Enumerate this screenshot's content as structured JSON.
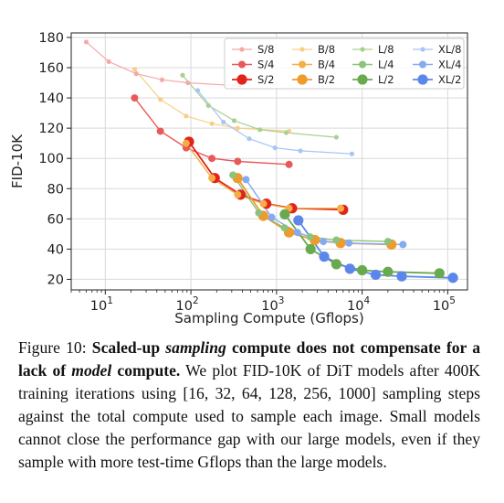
{
  "chart_data": {
    "type": "scatter",
    "xlabel": "Sampling Compute (Gflops)",
    "ylabel": "FID-10K",
    "xscale": "log",
    "xlim": [
      4,
      170000
    ],
    "ylim": [
      13,
      183
    ],
    "yticks": [
      20,
      40,
      60,
      80,
      100,
      120,
      140,
      160,
      180
    ],
    "xticks": [
      {
        "value": 10,
        "base": "10",
        "exp": "1"
      },
      {
        "value": 100,
        "base": "10",
        "exp": "2"
      },
      {
        "value": 1000,
        "base": "10",
        "exp": "3"
      },
      {
        "value": 10000,
        "base": "10",
        "exp": "4"
      },
      {
        "value": 100000,
        "base": "10",
        "exp": "5"
      }
    ],
    "grid": true,
    "legend_position": "top-right",
    "series": [
      {
        "name": "S/8",
        "color": "#f4a9a8",
        "size": 1,
        "x": [
          6,
          11,
          23,
          46,
          92,
          370
        ],
        "y": [
          177,
          164,
          156,
          152,
          150,
          148
        ]
      },
      {
        "name": "S/4",
        "color": "#e8595a",
        "size": 2,
        "x": [
          22,
          44,
          88,
          176,
          352,
          1400
        ],
        "y": [
          140,
          118,
          107,
          100,
          98,
          96
        ]
      },
      {
        "name": "S/2",
        "color": "#e2231a",
        "size": 3,
        "x": [
          95,
          190,
          380,
          760,
          1520,
          6000
        ],
        "y": [
          111,
          87,
          76,
          70,
          67,
          66
        ]
      },
      {
        "name": "B/8",
        "color": "#f6d08a",
        "size": 1,
        "x": [
          22,
          44,
          88,
          176,
          352,
          1400
        ],
        "y": [
          159,
          139,
          128,
          123,
          120,
          118
        ]
      },
      {
        "name": "B/4",
        "color": "#f4ae45",
        "size": 2,
        "x": [
          88,
          176,
          352,
          704,
          1400,
          5600
        ],
        "y": [
          110,
          87,
          76,
          70,
          67,
          67
        ]
      },
      {
        "name": "B/2",
        "color": "#ef9a2c",
        "size": 3,
        "x": [
          350,
          700,
          1400,
          2800,
          5600,
          22000
        ],
        "y": [
          87,
          62,
          51,
          46,
          44,
          43
        ]
      },
      {
        "name": "L/8",
        "color": "#a9d18e",
        "size": 1,
        "x": [
          80,
          160,
          320,
          640,
          1300,
          5000
        ],
        "y": [
          155,
          135,
          125,
          119,
          117,
          114
        ]
      },
      {
        "name": "L/4",
        "color": "#8cc37a",
        "size": 2,
        "x": [
          310,
          620,
          1240,
          2480,
          5000,
          20000
        ],
        "y": [
          89,
          64,
          54,
          48,
          46,
          45
        ]
      },
      {
        "name": "L/2",
        "color": "#6aaa4f",
        "size": 3,
        "x": [
          1250,
          2500,
          5000,
          10000,
          20000,
          80000
        ],
        "y": [
          63,
          40,
          30,
          26,
          25,
          24
        ]
      },
      {
        "name": "XL/8",
        "color": "#a9c4f5",
        "size": 1,
        "x": [
          120,
          240,
          480,
          960,
          1900,
          7600
        ],
        "y": [
          145,
          124,
          113,
          107,
          105,
          103
        ]
      },
      {
        "name": "XL/4",
        "color": "#86aaf0",
        "size": 2,
        "x": [
          440,
          880,
          1760,
          3520,
          7000,
          30000
        ],
        "y": [
          86,
          61,
          51,
          45,
          44,
          43
        ]
      },
      {
        "name": "XL/2",
        "color": "#5b86ea",
        "size": 3,
        "x": [
          1800,
          3600,
          7200,
          14400,
          29000,
          115000
        ],
        "y": [
          59,
          35,
          27,
          23,
          22,
          21
        ]
      }
    ]
  },
  "caption": {
    "prefix": "Figure 10: ",
    "bold_1": "Scaled-up ",
    "bold_italic_1": "sampling",
    "bold_2": " compute does not compensate for a lack of ",
    "bold_italic_2": "model",
    "bold_3": " compute.",
    "body": " We plot FID-10K of DiT models after 400K training iterations using [16, 32, 64, 128, 256, 1000] sampling steps against the total compute used to sample each image. Small models cannot close the performance gap with our large models, even if they sample with more test-time Gflops than the large models."
  }
}
